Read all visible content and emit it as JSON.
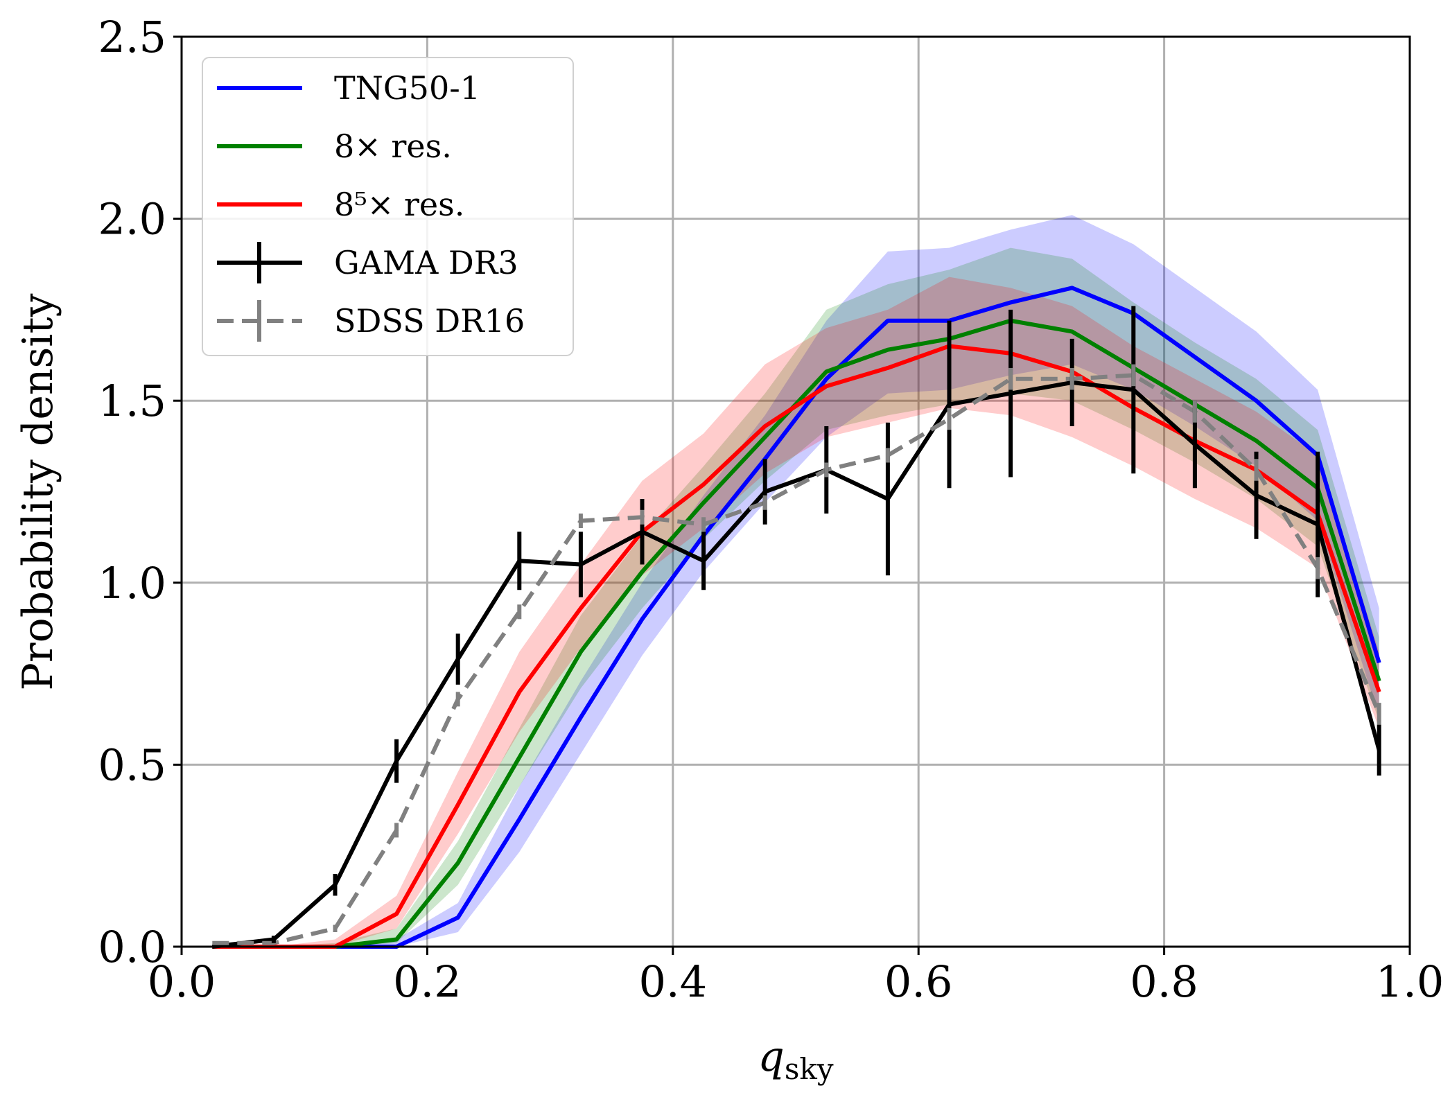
{
  "chart_data": {
    "type": "line",
    "title": "",
    "xlabel": "q",
    "xlabel_sub": "sky",
    "ylabel": "Probability density",
    "xlim": [
      0.0,
      1.0
    ],
    "ylim": [
      0.0,
      2.5
    ],
    "grid": true,
    "legend_position": "top-left",
    "x_ticks": [
      "0.0",
      "0.2",
      "0.4",
      "0.6",
      "0.8",
      "1.0"
    ],
    "y_ticks": [
      "0.0",
      "0.5",
      "1.0",
      "1.5",
      "2.0",
      "2.5"
    ],
    "x": [
      0.025,
      0.075,
      0.125,
      0.175,
      0.225,
      0.275,
      0.325,
      0.375,
      0.425,
      0.475,
      0.525,
      0.575,
      0.625,
      0.675,
      0.725,
      0.775,
      0.825,
      0.875,
      0.925,
      0.975
    ],
    "series": [
      {
        "name": "TNG50-1",
        "color": "#0000ff",
        "style": "line",
        "values": [
          0.0,
          0.0,
          0.0,
          0.0,
          0.08,
          0.35,
          0.63,
          0.9,
          1.13,
          1.34,
          1.56,
          1.72,
          1.72,
          1.77,
          1.81,
          1.74,
          1.62,
          1.5,
          1.35,
          0.78
        ],
        "band_lower": [
          0.0,
          0.0,
          0.0,
          0.0,
          0.04,
          0.26,
          0.53,
          0.8,
          1.03,
          1.22,
          1.4,
          1.52,
          1.53,
          1.57,
          1.6,
          1.53,
          1.43,
          1.32,
          1.17,
          0.63
        ],
        "band_upper": [
          0.0,
          0.0,
          0.0,
          0.02,
          0.12,
          0.44,
          0.73,
          1.0,
          1.24,
          1.46,
          1.72,
          1.91,
          1.92,
          1.97,
          2.01,
          1.93,
          1.81,
          1.69,
          1.53,
          0.93
        ]
      },
      {
        "name": "8× res.",
        "color": "#008000",
        "style": "line",
        "values": [
          0.0,
          0.0,
          0.0,
          0.02,
          0.23,
          0.52,
          0.81,
          1.03,
          1.22,
          1.4,
          1.58,
          1.64,
          1.67,
          1.72,
          1.69,
          1.59,
          1.49,
          1.39,
          1.26,
          0.73
        ],
        "band_lower": [
          0.0,
          0.0,
          0.0,
          0.01,
          0.17,
          0.44,
          0.71,
          0.93,
          1.12,
          1.28,
          1.42,
          1.46,
          1.49,
          1.52,
          1.5,
          1.42,
          1.33,
          1.23,
          1.1,
          0.62
        ],
        "band_upper": [
          0.0,
          0.0,
          0.01,
          0.05,
          0.29,
          0.6,
          0.91,
          1.13,
          1.32,
          1.52,
          1.75,
          1.82,
          1.86,
          1.92,
          1.89,
          1.77,
          1.66,
          1.56,
          1.42,
          0.85
        ]
      },
      {
        "name": "8⁵× res.",
        "color": "#ff0000",
        "style": "line",
        "values": [
          0.0,
          0.0,
          0.0,
          0.09,
          0.39,
          0.7,
          0.93,
          1.14,
          1.27,
          1.43,
          1.54,
          1.59,
          1.65,
          1.63,
          1.58,
          1.48,
          1.39,
          1.31,
          1.19,
          0.7
        ],
        "band_lower": [
          0.0,
          0.0,
          0.0,
          0.05,
          0.31,
          0.59,
          0.82,
          1.02,
          1.15,
          1.3,
          1.4,
          1.44,
          1.48,
          1.46,
          1.4,
          1.32,
          1.23,
          1.15,
          1.04,
          0.6
        ],
        "band_upper": [
          0.0,
          0.0,
          0.02,
          0.14,
          0.48,
          0.81,
          1.05,
          1.28,
          1.41,
          1.6,
          1.7,
          1.75,
          1.84,
          1.81,
          1.76,
          1.65,
          1.56,
          1.47,
          1.35,
          0.81
        ]
      },
      {
        "name": "GAMA DR3",
        "color": "#000000",
        "style": "errorbar",
        "values": [
          0.0,
          0.02,
          0.17,
          0.51,
          0.79,
          1.06,
          1.05,
          1.14,
          1.06,
          1.25,
          1.31,
          1.23,
          1.49,
          1.52,
          1.55,
          1.53,
          1.38,
          1.24,
          1.16,
          0.54
        ],
        "errors": [
          0.0,
          0.01,
          0.03,
          0.06,
          0.07,
          0.08,
          0.09,
          0.09,
          0.08,
          0.09,
          0.12,
          0.21,
          0.23,
          0.23,
          0.12,
          0.23,
          0.12,
          0.12,
          0.2,
          0.07
        ]
      },
      {
        "name": "SDSS DR16",
        "color": "#808080",
        "style": "dashed-errorbar",
        "values": [
          0.01,
          0.01,
          0.05,
          0.32,
          0.68,
          0.92,
          1.17,
          1.18,
          1.16,
          1.22,
          1.31,
          1.35,
          1.45,
          1.56,
          1.56,
          1.57,
          1.47,
          1.31,
          1.04,
          0.64
        ],
        "errors": [
          0.0,
          0.0,
          0.01,
          0.02,
          0.02,
          0.02,
          0.02,
          0.02,
          0.02,
          0.02,
          0.02,
          0.02,
          0.03,
          0.03,
          0.03,
          0.03,
          0.03,
          0.03,
          0.03,
          0.03
        ]
      }
    ]
  }
}
